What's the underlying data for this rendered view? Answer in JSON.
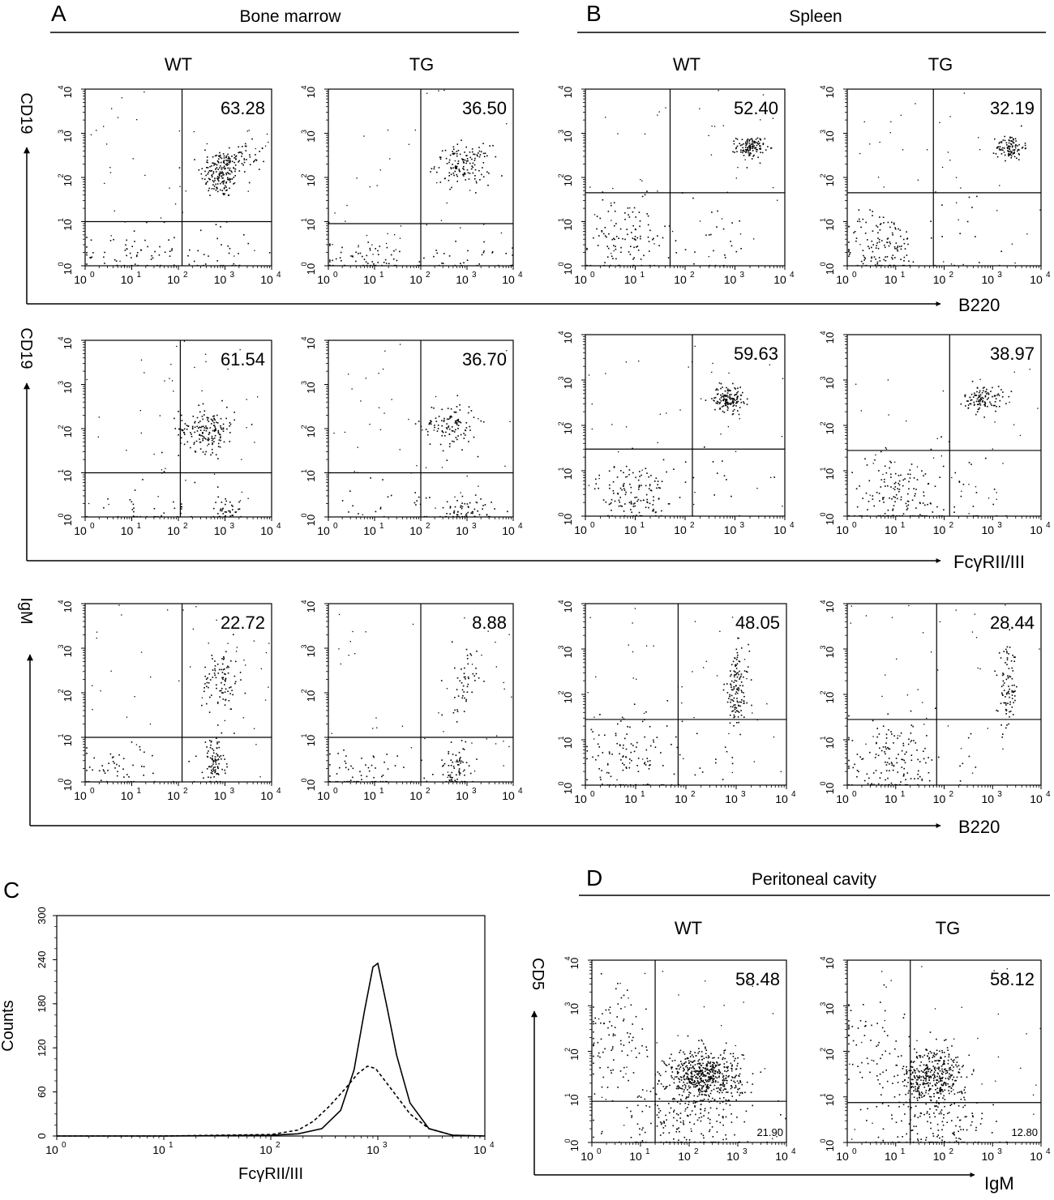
{
  "figure": {
    "panel_letters": [
      "A",
      "B",
      "C",
      "D"
    ],
    "section_titles": {
      "bone_marrow": "Bone marrow",
      "spleen": "Spleen",
      "peritoneal_cavity": "Peritoneal cavity"
    },
    "column_labels": [
      "WT",
      "TG"
    ],
    "row_axis_labels": {
      "row1_y": "CD19",
      "row1_x": "B220",
      "row2_y": "CD19",
      "row2_x": "FcγRII/III",
      "row3_y": "IgM",
      "row3_x": "B220",
      "d_y": "CD5",
      "d_x": "IgM"
    },
    "colors": {
      "ink": "#000000",
      "background": "#ffffff"
    }
  },
  "chart_data": [
    {
      "type": "scatter",
      "panel": "A",
      "section": "Bone marrow",
      "column": "WT",
      "xlabel": "B220",
      "ylabel": "CD19",
      "scale": "log",
      "xlim": [
        1,
        10000
      ],
      "ylim": [
        1,
        10000
      ],
      "x_ticks": [
        "10^0",
        "10^1",
        "10^2",
        "10^3",
        "10^4"
      ],
      "y_ticks": [
        "10^0",
        "10^1",
        "10^2",
        "10^3",
        "10^4"
      ],
      "gate": {
        "x": 120,
        "y": 10
      },
      "upper_right_percent": "63.28"
    },
    {
      "type": "scatter",
      "panel": "A",
      "section": "Bone marrow",
      "column": "TG",
      "xlabel": "B220",
      "ylabel": "CD19",
      "scale": "log",
      "xlim": [
        1,
        10000
      ],
      "ylim": [
        1,
        10000
      ],
      "x_ticks": [
        "10^0",
        "10^1",
        "10^2",
        "10^3",
        "10^4"
      ],
      "y_ticks": [
        "10^0",
        "10^1",
        "10^2",
        "10^3",
        "10^4"
      ],
      "gate": {
        "x": 100,
        "y": 9
      },
      "upper_right_percent": "36.50"
    },
    {
      "type": "scatter",
      "panel": "B",
      "section": "Spleen",
      "column": "WT",
      "xlabel": "B220",
      "ylabel": "CD19",
      "scale": "log",
      "xlim": [
        1,
        10000
      ],
      "ylim": [
        1,
        10000
      ],
      "x_ticks": [
        "10^0",
        "10^1",
        "10^2",
        "10^3",
        "10^4"
      ],
      "y_ticks": [
        "10^0",
        "10^1",
        "10^2",
        "10^3",
        "10^4"
      ],
      "gate": {
        "x": 50,
        "y": 45
      },
      "upper_right_percent": "52.40"
    },
    {
      "type": "scatter",
      "panel": "B",
      "section": "Spleen",
      "column": "TG",
      "xlabel": "B220",
      "ylabel": "CD19",
      "scale": "log",
      "xlim": [
        1,
        10000
      ],
      "ylim": [
        1,
        10000
      ],
      "x_ticks": [
        "10^0",
        "10^1",
        "10^2",
        "10^3",
        "10^4"
      ],
      "y_ticks": [
        "10^0",
        "10^1",
        "10^2",
        "10^3",
        "10^4"
      ],
      "gate": {
        "x": 60,
        "y": 45
      },
      "upper_right_percent": "32.19"
    },
    {
      "type": "scatter",
      "panel": "A",
      "section": "Bone marrow",
      "column": "WT",
      "xlabel": "FcγRII/III",
      "ylabel": "CD19",
      "scale": "log",
      "xlim": [
        1,
        10000
      ],
      "ylim": [
        1,
        10000
      ],
      "x_ticks": [
        "10^0",
        "10^1",
        "10^2",
        "10^3",
        "10^4"
      ],
      "y_ticks": [
        "10^0",
        "10^1",
        "10^2",
        "10^3",
        "10^4"
      ],
      "gate": {
        "x": 110,
        "y": 10
      },
      "upper_right_percent": "61.54"
    },
    {
      "type": "scatter",
      "panel": "A",
      "section": "Bone marrow",
      "column": "TG",
      "xlabel": "FcγRII/III",
      "ylabel": "CD19",
      "scale": "log",
      "xlim": [
        1,
        10000
      ],
      "ylim": [
        1,
        10000
      ],
      "x_ticks": [
        "10^0",
        "10^1",
        "10^2",
        "10^3",
        "10^4"
      ],
      "y_ticks": [
        "10^0",
        "10^1",
        "10^2",
        "10^3",
        "10^4"
      ],
      "gate": {
        "x": 100,
        "y": 10
      },
      "upper_right_percent": "36.70"
    },
    {
      "type": "scatter",
      "panel": "B",
      "section": "Spleen",
      "column": "WT",
      "xlabel": "FcγRII/III",
      "ylabel": "CD19",
      "scale": "log",
      "xlim": [
        1,
        10000
      ],
      "ylim": [
        1,
        10000
      ],
      "x_ticks": [
        "10^0",
        "10^1",
        "10^2",
        "10^3",
        "10^4"
      ],
      "y_ticks": [
        "10^0",
        "10^1",
        "10^2",
        "10^3",
        "10^4"
      ],
      "gate": {
        "x": 140,
        "y": 30
      },
      "upper_right_percent": "59.63"
    },
    {
      "type": "scatter",
      "panel": "B",
      "section": "Spleen",
      "column": "TG",
      "xlabel": "FcγRII/III",
      "ylabel": "CD19",
      "scale": "log",
      "xlim": [
        1,
        10000
      ],
      "ylim": [
        1,
        10000
      ],
      "x_ticks": [
        "10^0",
        "10^1",
        "10^2",
        "10^3",
        "10^4"
      ],
      "y_ticks": [
        "10^0",
        "10^1",
        "10^2",
        "10^3",
        "10^4"
      ],
      "gate": {
        "x": 130,
        "y": 28
      },
      "upper_right_percent": "38.97"
    },
    {
      "type": "scatter",
      "panel": "A",
      "section": "Bone marrow",
      "column": "WT",
      "xlabel": "B220",
      "ylabel": "IgM",
      "scale": "log",
      "xlim": [
        1,
        10000
      ],
      "ylim": [
        1,
        10000
      ],
      "x_ticks": [
        "10^0",
        "10^1",
        "10^2",
        "10^3",
        "10^4"
      ],
      "y_ticks": [
        "10^0",
        "10^1",
        "10^2",
        "10^3",
        "10^4"
      ],
      "gate": {
        "x": 120,
        "y": 10
      },
      "upper_right_percent": "22.72"
    },
    {
      "type": "scatter",
      "panel": "A",
      "section": "Bone marrow",
      "column": "TG",
      "xlabel": "B220",
      "ylabel": "IgM",
      "scale": "log",
      "xlim": [
        1,
        10000
      ],
      "ylim": [
        1,
        10000
      ],
      "x_ticks": [
        "10^0",
        "10^1",
        "10^2",
        "10^3",
        "10^4"
      ],
      "y_ticks": [
        "10^0",
        "10^1",
        "10^2",
        "10^3",
        "10^4"
      ],
      "gate": {
        "x": 100,
        "y": 10
      },
      "upper_right_percent": "8.88"
    },
    {
      "type": "scatter",
      "panel": "B",
      "section": "Spleen",
      "column": "WT",
      "xlabel": "B220",
      "ylabel": "IgM",
      "scale": "log",
      "xlim": [
        1,
        10000
      ],
      "ylim": [
        1,
        10000
      ],
      "x_ticks": [
        "10^0",
        "10^1",
        "10^2",
        "10^3",
        "10^4"
      ],
      "y_ticks": [
        "10^0",
        "10^1",
        "10^2",
        "10^3",
        "10^4"
      ],
      "gate": {
        "x": 70,
        "y": 28
      },
      "upper_right_percent": "48.05"
    },
    {
      "type": "scatter",
      "panel": "B",
      "section": "Spleen",
      "column": "TG",
      "xlabel": "B220",
      "ylabel": "IgM",
      "scale": "log",
      "xlim": [
        1,
        10000
      ],
      "ylim": [
        1,
        10000
      ],
      "x_ticks": [
        "10^0",
        "10^1",
        "10^2",
        "10^3",
        "10^4"
      ],
      "y_ticks": [
        "10^0",
        "10^1",
        "10^2",
        "10^3",
        "10^4"
      ],
      "gate": {
        "x": 70,
        "y": 28
      },
      "upper_right_percent": "28.44"
    },
    {
      "type": "line",
      "panel": "C",
      "xlabel": "FcγRII/III",
      "ylabel": "Counts",
      "x_scale": "log",
      "xlim": [
        1,
        10000
      ],
      "ylim": [
        0,
        300
      ],
      "x_ticks": [
        "10^0",
        "10^1",
        "10^2",
        "10^3",
        "10^4"
      ],
      "y_ticks": [
        "0",
        "60",
        "120",
        "180",
        "240",
        "300"
      ],
      "series": [
        {
          "style": "solid",
          "x": [
            1,
            10,
            100,
            180,
            300,
            450,
            600,
            750,
            900,
            1000,
            1200,
            1500,
            2000,
            3000,
            5000,
            10000
          ],
          "y": [
            0,
            0,
            1,
            3,
            10,
            35,
            90,
            170,
            230,
            235,
            180,
            110,
            45,
            10,
            1,
            0
          ]
        },
        {
          "style": "dashed",
          "x": [
            1,
            10,
            100,
            180,
            250,
            350,
            500,
            650,
            800,
            950,
            1100,
            1400,
            2000,
            3000,
            5000,
            10000
          ],
          "y": [
            0,
            0,
            2,
            8,
            20,
            40,
            65,
            85,
            95,
            92,
            80,
            60,
            30,
            10,
            1,
            0
          ]
        }
      ]
    },
    {
      "type": "scatter",
      "panel": "D",
      "section": "Peritoneal cavity",
      "column": "WT",
      "xlabel": "IgM",
      "ylabel": "CD5",
      "scale": "log",
      "xlim": [
        1,
        10000
      ],
      "ylim": [
        1,
        10000
      ],
      "x_ticks": [
        "10^0",
        "10^1",
        "10^2",
        "10^3",
        "10^4"
      ],
      "y_ticks": [
        "10^0",
        "10^1",
        "10^2",
        "10^3",
        "10^4"
      ],
      "gate": {
        "x": 20,
        "y": 8
      },
      "upper_right_percent": "58.48",
      "lower_right_percent": "21.90"
    },
    {
      "type": "scatter",
      "panel": "D",
      "section": "Peritoneal cavity",
      "column": "TG",
      "xlabel": "IgM",
      "ylabel": "CD5",
      "scale": "log",
      "xlim": [
        1,
        10000
      ],
      "ylim": [
        1,
        10000
      ],
      "x_ticks": [
        "10^0",
        "10^1",
        "10^2",
        "10^3",
        "10^4"
      ],
      "y_ticks": [
        "10^0",
        "10^1",
        "10^2",
        "10^3",
        "10^4"
      ],
      "gate": {
        "x": 20,
        "y": 7.5
      },
      "upper_right_percent": "58.12",
      "lower_right_percent": "12.80"
    }
  ]
}
